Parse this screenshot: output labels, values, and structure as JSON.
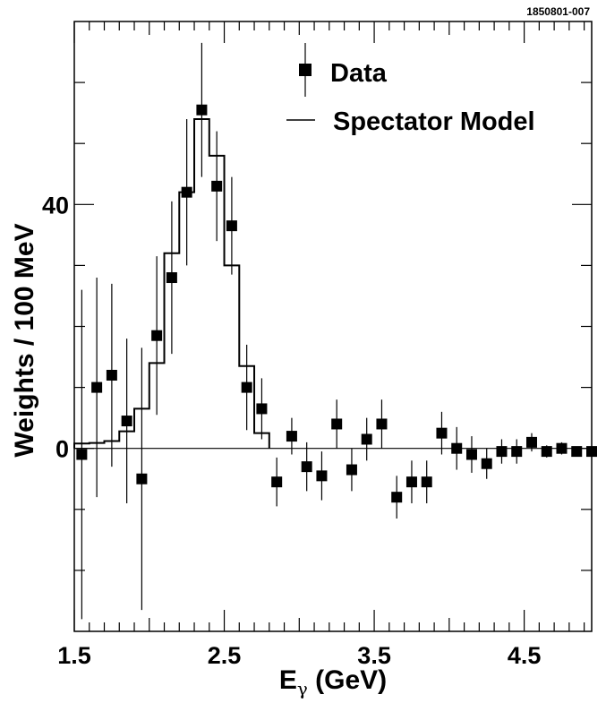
{
  "figure_id": "1850801-007",
  "chart_data": {
    "type": "scatter",
    "title": "",
    "xlabel_main": "E",
    "xlabel_sub": "γ",
    "xlabel_rest": " (GeV)",
    "ylabel": "Weights / 100 MeV",
    "xlim": [
      1.5,
      4.95
    ],
    "ylim": [
      -30,
      70
    ],
    "x_ticks": [
      1.5,
      2.5,
      3.5,
      4.5
    ],
    "x_tick_labels": [
      "1.5",
      "2.5",
      "3.5",
      "4.5"
    ],
    "y_ticks": [
      0,
      40
    ],
    "y_tick_labels": [
      "0",
      "40"
    ],
    "legend_position": "top-right",
    "series": [
      {
        "name": "Data",
        "kind": "points-with-errors",
        "x": [
          1.55,
          1.65,
          1.75,
          1.85,
          1.95,
          2.05,
          2.15,
          2.25,
          2.35,
          2.45,
          2.55,
          2.65,
          2.75,
          2.85,
          2.95,
          3.05,
          3.15,
          3.25,
          3.35,
          3.45,
          3.55,
          3.65,
          3.75,
          3.85,
          3.95,
          4.05,
          4.15,
          4.25,
          4.35,
          4.45,
          4.55,
          4.65,
          4.75,
          4.85,
          4.95
        ],
        "y": [
          -1,
          10,
          12,
          4.5,
          -5,
          18.5,
          28,
          42,
          55.5,
          43,
          36.5,
          10,
          6.5,
          -5.5,
          2,
          -3,
          -4.5,
          4,
          -3.5,
          1.5,
          4,
          -8,
          -5.5,
          -5.5,
          2.5,
          0,
          -1,
          -2.5,
          -0.5,
          -0.5,
          1,
          -0.5,
          0,
          -0.5,
          -0.5
        ],
        "yerr": [
          27,
          18,
          15,
          13.5,
          21.5,
          13,
          12.5,
          12,
          11,
          9,
          8,
          7,
          5,
          4,
          3,
          4,
          4,
          4,
          3.5,
          3.5,
          4,
          3.5,
          3.5,
          3.5,
          3.5,
          3.5,
          3,
          2.5,
          2,
          2,
          1.5,
          1,
          1,
          0.5,
          0.5
        ]
      },
      {
        "name": "Spectator Model",
        "kind": "step-histogram",
        "bin_edges": [
          1.5,
          1.6,
          1.7,
          1.8,
          1.9,
          2.0,
          2.1,
          2.2,
          2.3,
          2.4,
          2.5,
          2.6,
          2.7,
          2.8
        ],
        "values": [
          0.8,
          0.9,
          1.2,
          2.8,
          6.5,
          14,
          32,
          42,
          54,
          48,
          30,
          13.5,
          2.5
        ]
      }
    ]
  }
}
